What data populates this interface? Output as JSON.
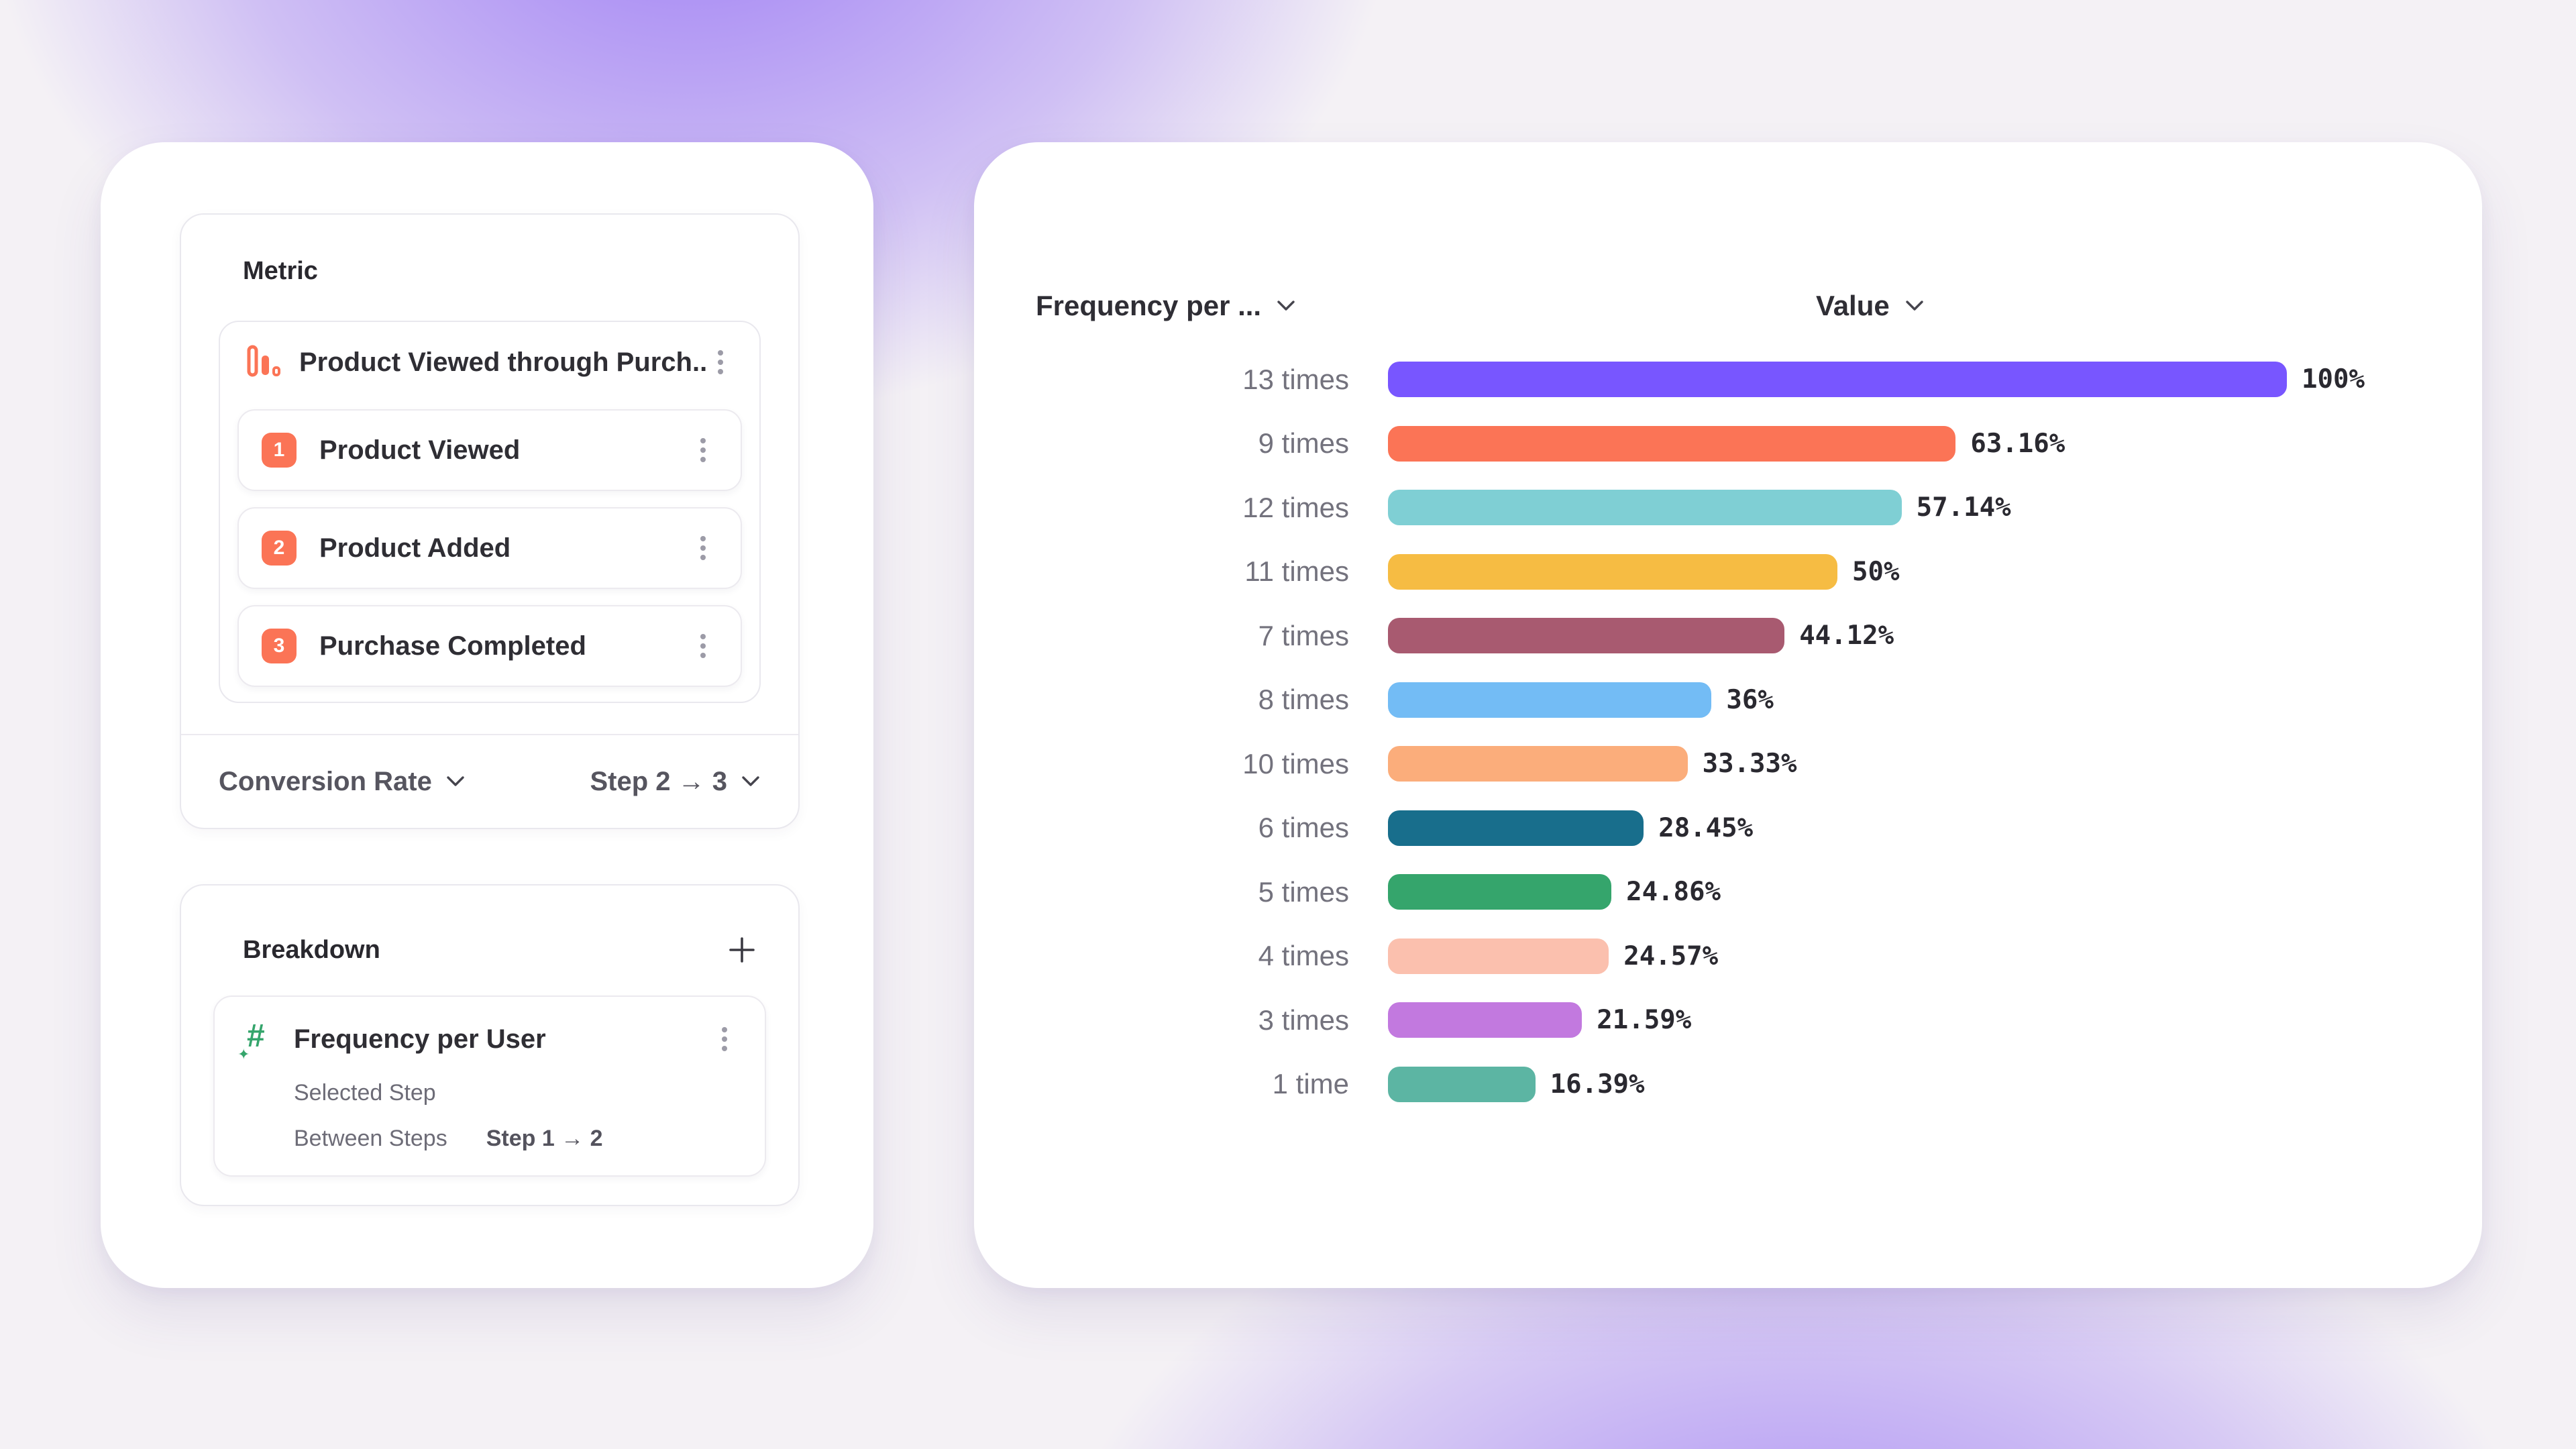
{
  "background": {
    "base_color": "#F4F1F5",
    "glow_color": "#9470F3"
  },
  "colors": {
    "accent_orange": "#FB7456",
    "accent_green": "#35A56C",
    "panel_bg": "#FFFFFF",
    "percent_text": "#2A2930",
    "row_label_text": "#73727D"
  },
  "icons": {
    "funnel_metric": "bar-chart-icon",
    "row_menu": "kebab-menu-icon",
    "breakdown_property": "hash-number-icon",
    "add_breakdown": "plus-icon",
    "dropdown": "chevron-down-icon"
  },
  "left_panel": {
    "metric": {
      "section_title": "Metric",
      "funnel_title": "Product Viewed through Purch...",
      "steps": [
        {
          "number": "1",
          "label": "Product Viewed"
        },
        {
          "number": "2",
          "label": "Product Added"
        },
        {
          "number": "3",
          "label": "Purchase Completed"
        }
      ],
      "measure_label": "Conversion Rate",
      "range_label": "Step 2 → 3"
    },
    "breakdown": {
      "section_title": "Breakdown",
      "property_title": "Frequency per User",
      "row_selected_step": "Selected Step",
      "row_between_steps": "Between Steps",
      "between_steps_value": "Step 1 → 2"
    }
  },
  "chart": {
    "frequency_header": "Frequency per ...",
    "value_header": "Value"
  },
  "chart_data": {
    "type": "bar",
    "orientation": "horizontal",
    "title": "",
    "xlabel": "Value",
    "ylabel": "Frequency per User",
    "xlim": [
      0,
      100
    ],
    "grid": false,
    "legend": false,
    "value_suffix": "%",
    "categories": [
      "13 times",
      "9 times",
      "12 times",
      "11 times",
      "7 times",
      "8 times",
      "10 times",
      "6 times",
      "5 times",
      "4 times",
      "3 times",
      "1 time"
    ],
    "values": [
      100,
      63.16,
      57.14,
      50,
      44.12,
      36,
      33.33,
      28.45,
      24.86,
      24.57,
      21.59,
      16.39
    ],
    "value_labels": [
      "100%",
      "63.16%",
      "57.14%",
      "50%",
      "44.12%",
      "36%",
      "33.33%",
      "28.45%",
      "24.86%",
      "24.57%",
      "21.59%",
      "16.39%"
    ],
    "bar_colors": [
      "#7856FF",
      "#FB7456",
      "#7FCFD4",
      "#F6BC43",
      "#A85A70",
      "#73BCF5",
      "#FBAD7B",
      "#186E8C",
      "#35A56C",
      "#FBC0AE",
      "#C279DF",
      "#5CB5A3"
    ]
  }
}
